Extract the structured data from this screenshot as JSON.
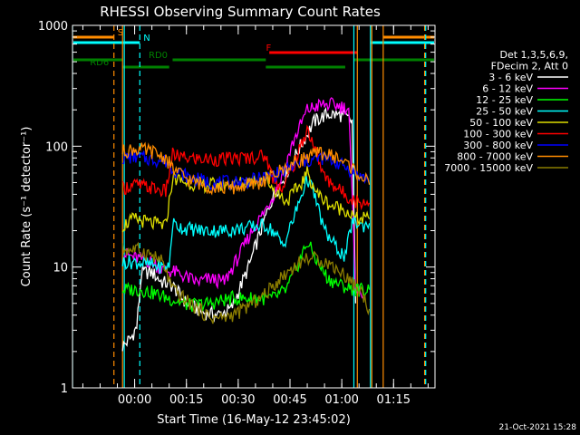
{
  "chart_data": {
    "type": "line",
    "title": "RHESSI Observing Summary Count Rates",
    "xlabel": "Start Time (16-May-12 23:45:02)",
    "ylabel": "Count Rate (s⁻¹ detector⁻¹)",
    "x_unit": "minutes",
    "xlim": [
      -18,
      87
    ],
    "ylim": [
      1,
      1000
    ],
    "log_y": true,
    "grid": false,
    "x_ticks": [
      {
        "value": 0,
        "label": "00:00"
      },
      {
        "value": 15,
        "label": "00:15"
      },
      {
        "value": 30,
        "label": "00:30"
      },
      {
        "value": 45,
        "label": "00:45"
      },
      {
        "value": 60,
        "label": "01:00"
      },
      {
        "value": 75,
        "label": "01:15"
      }
    ],
    "y_ticks": [
      {
        "value": 1,
        "label": "1"
      },
      {
        "value": 10,
        "label": "10"
      },
      {
        "value": 100,
        "label": "100"
      },
      {
        "value": 1000,
        "label": "1000"
      }
    ],
    "legend": {
      "placement": "right",
      "header": [
        "Det 1,3,5,6,9,",
        "FDecim 2, Att 0"
      ]
    },
    "series": [
      {
        "name": "3 - 6 keV",
        "color": "#ffffff",
        "points": [
          [
            -3.5,
            2.2
          ],
          [
            -1,
            2.6
          ],
          [
            0.6,
            3.2
          ],
          [
            2,
            9
          ],
          [
            5,
            9
          ],
          [
            8,
            7.5
          ],
          [
            11,
            7
          ],
          [
            15,
            5
          ],
          [
            20,
            4.2
          ],
          [
            24,
            4
          ],
          [
            28,
            4.5
          ],
          [
            33,
            10
          ],
          [
            37,
            22
          ],
          [
            40,
            38
          ],
          [
            44,
            60
          ],
          [
            48,
            100
          ],
          [
            52,
            160
          ],
          [
            56,
            185
          ],
          [
            60,
            180
          ],
          [
            63,
            160
          ],
          [
            64,
            5
          ]
        ]
      },
      {
        "name": "6 - 12 keV",
        "color": "#ff00ff",
        "points": [
          [
            -3.5,
            13
          ],
          [
            0,
            12
          ],
          [
            5,
            11
          ],
          [
            8,
            9.5
          ],
          [
            12,
            9
          ],
          [
            18,
            7.5
          ],
          [
            22,
            8
          ],
          [
            26,
            7.5
          ],
          [
            30,
            12
          ],
          [
            34,
            20
          ],
          [
            38,
            30
          ],
          [
            42,
            50
          ],
          [
            46,
            110
          ],
          [
            50,
            200
          ],
          [
            54,
            220
          ],
          [
            58,
            220
          ],
          [
            62,
            205
          ],
          [
            64,
            7
          ],
          [
            66,
            5.5
          ]
        ]
      },
      {
        "name": "12 - 25 keV",
        "color": "#00ff00",
        "points": [
          [
            -3.5,
            6.5
          ],
          [
            2,
            6.5
          ],
          [
            6,
            6
          ],
          [
            10,
            5.5
          ],
          [
            16,
            4.8
          ],
          [
            22,
            5
          ],
          [
            28,
            5.5
          ],
          [
            33,
            5.5
          ],
          [
            36,
            5.5
          ],
          [
            40,
            5.5
          ],
          [
            44,
            6.5
          ],
          [
            47,
            10
          ],
          [
            50,
            16
          ],
          [
            53,
            11
          ],
          [
            56,
            8
          ],
          [
            60,
            7
          ],
          [
            64,
            6.5
          ],
          [
            68,
            6.5
          ]
        ]
      },
      {
        "name": "25 - 50 keV",
        "color": "#00ffff",
        "points": [
          [
            -3.5,
            11
          ],
          [
            0,
            11
          ],
          [
            4,
            10.5
          ],
          [
            8,
            10
          ],
          [
            10,
            10
          ],
          [
            11,
            23
          ],
          [
            14,
            21
          ],
          [
            20,
            20
          ],
          [
            26,
            20
          ],
          [
            32,
            21
          ],
          [
            36,
            22
          ],
          [
            38,
            22
          ],
          [
            40,
            20
          ],
          [
            43,
            15
          ],
          [
            46,
            25
          ],
          [
            49,
            45
          ],
          [
            50,
            55
          ],
          [
            52,
            40
          ],
          [
            55,
            20
          ],
          [
            58,
            15
          ],
          [
            61,
            12
          ],
          [
            63,
            24
          ],
          [
            66,
            22
          ],
          [
            68,
            23
          ]
        ]
      },
      {
        "name": "50 - 100 keV",
        "color": "#dddd00",
        "points": [
          [
            -3.5,
            22
          ],
          [
            0,
            25
          ],
          [
            5,
            23
          ],
          [
            9,
            22
          ],
          [
            11,
            55
          ],
          [
            15,
            50
          ],
          [
            20,
            48
          ],
          [
            26,
            48
          ],
          [
            32,
            50
          ],
          [
            36,
            54
          ],
          [
            38,
            55
          ],
          [
            40,
            45
          ],
          [
            44,
            35
          ],
          [
            48,
            48
          ],
          [
            50,
            60
          ],
          [
            53,
            40
          ],
          [
            57,
            32
          ],
          [
            61,
            30
          ],
          [
            64,
            25
          ],
          [
            68,
            25
          ]
        ]
      },
      {
        "name": "100 - 300 keV",
        "color": "#ff0000",
        "points": [
          [
            -3.5,
            45
          ],
          [
            0,
            48
          ],
          [
            5,
            45
          ],
          [
            9,
            42
          ],
          [
            11,
            85
          ],
          [
            14,
            80
          ],
          [
            20,
            78
          ],
          [
            26,
            78
          ],
          [
            32,
            80
          ],
          [
            37,
            83
          ],
          [
            38,
            82
          ],
          [
            40,
            55
          ],
          [
            43,
            45
          ],
          [
            47,
            80
          ],
          [
            50,
            140
          ],
          [
            52,
            100
          ],
          [
            55,
            55
          ],
          [
            60,
            42
          ],
          [
            64,
            35
          ],
          [
            68,
            34
          ]
        ]
      },
      {
        "name": "300 - 800 keV",
        "color": "#0000ff",
        "points": [
          [
            -3.5,
            80
          ],
          [
            0,
            82
          ],
          [
            5,
            78
          ],
          [
            9,
            75
          ],
          [
            11,
            65
          ],
          [
            16,
            55
          ],
          [
            22,
            50
          ],
          [
            28,
            50
          ],
          [
            34,
            52
          ],
          [
            38,
            55
          ],
          [
            42,
            60
          ],
          [
            46,
            68
          ],
          [
            50,
            75
          ],
          [
            54,
            80
          ],
          [
            58,
            75
          ],
          [
            62,
            65
          ],
          [
            66,
            55
          ],
          [
            68,
            52
          ]
        ]
      },
      {
        "name": "800 - 7000 keV",
        "color": "#ff8c00",
        "points": [
          [
            -3.5,
            90
          ],
          [
            0,
            95
          ],
          [
            5,
            90
          ],
          [
            9,
            80
          ],
          [
            11,
            65
          ],
          [
            16,
            52
          ],
          [
            22,
            46
          ],
          [
            28,
            45
          ],
          [
            34,
            48
          ],
          [
            38,
            52
          ],
          [
            42,
            62
          ],
          [
            46,
            72
          ],
          [
            50,
            82
          ],
          [
            54,
            88
          ],
          [
            58,
            82
          ],
          [
            62,
            70
          ],
          [
            66,
            55
          ],
          [
            68,
            48
          ]
        ]
      },
      {
        "name": "7000 - 15000 keV",
        "color": "#8b7d00",
        "points": [
          [
            -3.5,
            14
          ],
          [
            0,
            14
          ],
          [
            4,
            13
          ],
          [
            8,
            11
          ],
          [
            11,
            6.5
          ],
          [
            16,
            5
          ],
          [
            22,
            3.8
          ],
          [
            26,
            3.8
          ],
          [
            30,
            4.2
          ],
          [
            34,
            5
          ],
          [
            38,
            6
          ],
          [
            42,
            8
          ],
          [
            46,
            10
          ],
          [
            50,
            12
          ],
          [
            54,
            11.5
          ],
          [
            58,
            10
          ],
          [
            62,
            8
          ],
          [
            66,
            6
          ],
          [
            68,
            4.5
          ]
        ]
      }
    ],
    "vertical_markers": [
      {
        "x": -18,
        "color": "#00ffff",
        "style": "solid"
      },
      {
        "x": -6,
        "color": "#ff8c00",
        "style": "dashed"
      },
      {
        "x": 1.5,
        "color": "#00ffff",
        "style": "dashed"
      },
      {
        "x": 63.5,
        "color": "#00ffff",
        "style": "solid"
      },
      {
        "x": 64.5,
        "color": "#ff8c00",
        "style": "solid"
      },
      {
        "x": 68.3,
        "color": "#00ffff",
        "style": "solid"
      },
      {
        "x": 68.7,
        "color": "#ff8c00",
        "style": "solid"
      },
      {
        "x": 72,
        "color": "#ff8c00",
        "style": "solid"
      },
      {
        "x": 84,
        "color": "#ff8c00",
        "style": "dashed"
      },
      {
        "x": 84.3,
        "color": "#00ffff",
        "style": "dashed"
      },
      {
        "x": -3.5,
        "color": "#ff8c00",
        "style": "solid"
      },
      {
        "x": -3.0,
        "color": "#00ffff",
        "style": "solid"
      }
    ],
    "flags": [
      {
        "label": "S",
        "color": "#ff8c00",
        "level": 1,
        "segments": [
          [
            -18,
            -6
          ],
          [
            72,
            87
          ]
        ],
        "label_x": -6
      },
      {
        "label": "N",
        "color": "#00ffff",
        "level": 2,
        "segments": [
          [
            -18,
            1.5
          ],
          [
            68.3,
            87
          ]
        ],
        "label_x": 1.5
      },
      {
        "label": "F",
        "color": "#ff0000",
        "level": 3,
        "segments": [
          [
            39,
            64.5
          ]
        ],
        "label_x": 37
      },
      {
        "label": "RD0",
        "color": "#008000",
        "level": 4,
        "segments": [
          [
            -18,
            -3.5
          ],
          [
            11,
            38
          ],
          [
            63.5,
            87
          ]
        ],
        "label_x": 3
      },
      {
        "label": "RD6",
        "color": "#008000",
        "level": 5,
        "segments": [
          [
            -3.5,
            10
          ],
          [
            38,
            61
          ]
        ],
        "label_x": -14
      }
    ],
    "footer": "21-Oct-2021 15:28"
  }
}
